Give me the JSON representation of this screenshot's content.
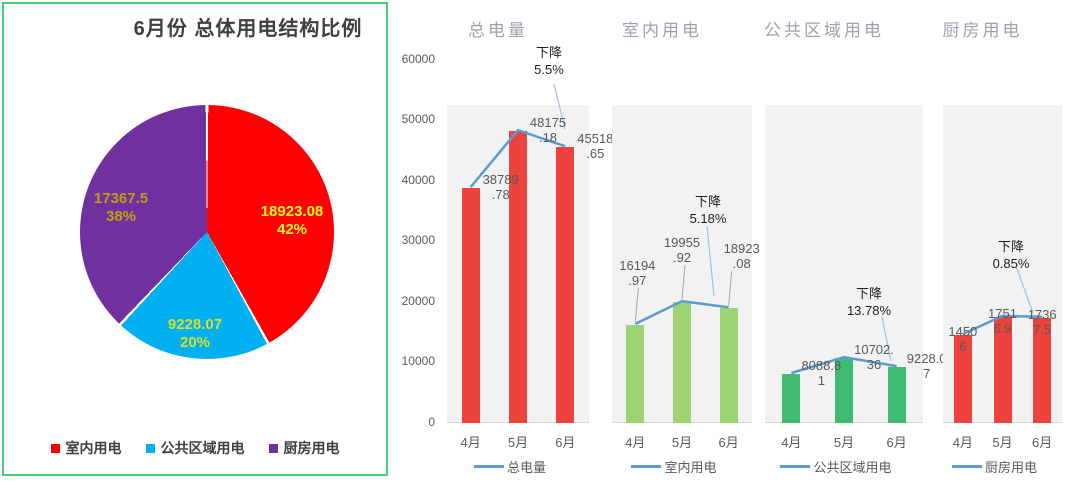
{
  "chart_data": [
    {
      "type": "pie",
      "title": "6月份 总体用电结构比例",
      "legend_position": "bottom",
      "slices": [
        {
          "name": "室内用电",
          "value": 18923.08,
          "percent": "42%",
          "color": "#fe0000",
          "label_color": "#ffff00"
        },
        {
          "name": "公共区域用电",
          "value": 9228.07,
          "percent": "20%",
          "color": "#00b0f0",
          "label_color": "#d9e021"
        },
        {
          "name": "厨房用电",
          "value": 17367.5,
          "percent": "38%",
          "color": "#7030a0",
          "label_color": "#c0a00d"
        }
      ]
    },
    {
      "type": "bar",
      "title": "总电量",
      "categories": [
        "4月",
        "5月",
        "6月"
      ],
      "values": [
        38789.78,
        48175.18,
        45518.65
      ],
      "value_labels": [
        [
          "38789",
          ".78"
        ],
        [
          "48175",
          ".18"
        ],
        [
          "45518",
          ".65"
        ]
      ],
      "annotation": [
        "下降",
        "5.5%"
      ],
      "legend_label": "总电量",
      "bar_color": "#ee423d",
      "line_color": "#5b9bd5",
      "ylim": [
        0,
        60000
      ],
      "y_ticks": [
        "0",
        "10000",
        "20000",
        "30000",
        "40000",
        "50000",
        "60000"
      ]
    },
    {
      "type": "bar",
      "title": "室内用电",
      "categories": [
        "4月",
        "5月",
        "6月"
      ],
      "values": [
        16194.97,
        19955.92,
        18923.08
      ],
      "value_labels": [
        [
          "16194",
          ".97"
        ],
        [
          "19955",
          ".92"
        ],
        [
          "18923",
          ".08"
        ]
      ],
      "annotation": [
        "下降",
        "5.18%"
      ],
      "legend_label": "室内用电",
      "bar_color": "#9ed374",
      "line_color": "#5b9bd5",
      "ylim": [
        0,
        60000
      ]
    },
    {
      "type": "bar",
      "title": "公共区域用电",
      "categories": [
        "4月",
        "5月",
        "6月"
      ],
      "values": [
        8088.81,
        10702.36,
        9228.07
      ],
      "value_labels": [
        [
          "8088.8",
          "1"
        ],
        [
          "10702.",
          "36"
        ],
        [
          "9228.0",
          "7"
        ]
      ],
      "annotation": [
        "下降",
        "13.78%"
      ],
      "legend_label": "公共区域用电",
      "bar_color": "#3fbb72",
      "line_color": "#5b9bd5",
      "ylim": [
        0,
        60000
      ]
    },
    {
      "type": "bar",
      "title": "厨房用电",
      "categories": [
        "4月",
        "5月",
        "6月"
      ],
      "values": [
        14506,
        17516.9,
        17367.5
      ],
      "value_labels": [
        [
          "1450",
          "6"
        ],
        [
          "1751",
          "6.9"
        ],
        [
          "1736",
          "7.5"
        ]
      ],
      "annotation": [
        "下降",
        "0.85%"
      ],
      "legend_label": "厨房用电",
      "bar_color": "#ee423d",
      "line_color": "#5b9bd5",
      "ylim": [
        0,
        60000
      ]
    }
  ]
}
